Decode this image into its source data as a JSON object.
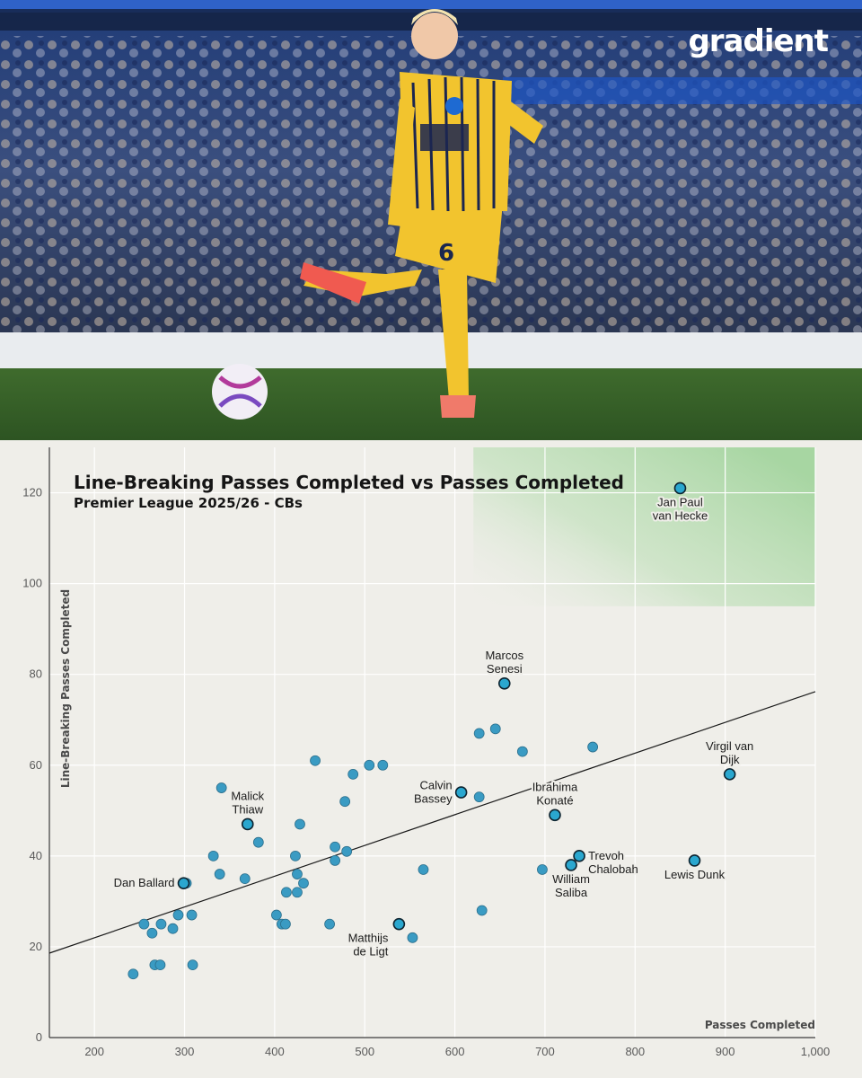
{
  "brand": {
    "logo_text": "gradient"
  },
  "colors": {
    "panel_bg": "#efeee9",
    "point_fill": "#3a9bc3",
    "point_stroke": "#2c6f8c",
    "highlight_point_fill": "#2aa7cf",
    "highlight_point_stroke": "#0e2430",
    "trend_line": "#1a1a1a",
    "grid": "#ffffff",
    "highlight_zone": "#9fd39a",
    "kit_yellow": "#f2c42e",
    "kit_navy": "#1b2650"
  },
  "photo": {
    "description_icon": "football-player-photo",
    "shirt_number": "6",
    "sponsor": "AMERICAN EXPRESS"
  },
  "chart_data": {
    "type": "scatter",
    "title": "Line-Breaking Passes Completed vs Passes Completed",
    "subtitle": "Premier League 2025/26 - CBs",
    "xlabel": "Passes Completed",
    "ylabel": "Line-Breaking Passes Completed",
    "xlim": [
      150,
      1000
    ],
    "ylim": [
      0,
      130
    ],
    "x_ticks": [
      200,
      300,
      400,
      500,
      600,
      700,
      800,
      900,
      1000
    ],
    "x_tick_labels": [
      "200",
      "300",
      "400",
      "500",
      "600",
      "700",
      "800",
      "900",
      "1,000"
    ],
    "y_ticks": [
      0,
      20,
      40,
      60,
      80,
      100,
      120
    ],
    "grid": true,
    "highlight_region": {
      "x": [
        780,
        1000
      ],
      "y": [
        95,
        130
      ]
    },
    "trend_line": {
      "x": [
        150,
        1000
      ],
      "y": [
        18.6,
        76.2
      ]
    },
    "points": [
      {
        "x": 850,
        "y": 121,
        "label": [
          "Jan Paul",
          "van Hecke"
        ],
        "label_pos": "below",
        "highlight": true
      },
      {
        "x": 655,
        "y": 78,
        "label": [
          "Marcos",
          "Senesi"
        ],
        "label_pos": "above",
        "highlight": true
      },
      {
        "x": 905,
        "y": 58,
        "label": [
          "Virgil van",
          "Dijk"
        ],
        "label_pos": "above",
        "highlight": true
      },
      {
        "x": 607,
        "y": 54,
        "label": [
          "Calvin",
          "Bassey"
        ],
        "label_pos": "left",
        "highlight": true
      },
      {
        "x": 711,
        "y": 49,
        "label": [
          "Ibrahima",
          "Konaté"
        ],
        "label_pos": "above",
        "highlight": true
      },
      {
        "x": 370,
        "y": 47,
        "label": [
          "Malick",
          "Thiaw"
        ],
        "label_pos": "above",
        "highlight": true
      },
      {
        "x": 866,
        "y": 39,
        "label": [
          "Lewis Dunk"
        ],
        "label_pos": "below",
        "highlight": true
      },
      {
        "x": 738,
        "y": 40,
        "label": [
          "Trevoh",
          "Chalobah"
        ],
        "label_pos": "right",
        "highlight": true
      },
      {
        "x": 729,
        "y": 38,
        "label": [
          "William",
          "Saliba"
        ],
        "label_pos": "below",
        "highlight": true
      },
      {
        "x": 299,
        "y": 34,
        "label": [
          "Dan Ballard"
        ],
        "label_pos": "left",
        "highlight": true
      },
      {
        "x": 538,
        "y": 25,
        "label": [
          "Matthijs",
          "de Ligt"
        ],
        "label_pos": "below-left",
        "highlight": true
      },
      {
        "x": 645,
        "y": 68
      },
      {
        "x": 627,
        "y": 67
      },
      {
        "x": 675,
        "y": 63
      },
      {
        "x": 753,
        "y": 64
      },
      {
        "x": 445,
        "y": 61
      },
      {
        "x": 505,
        "y": 60
      },
      {
        "x": 520,
        "y": 60
      },
      {
        "x": 487,
        "y": 58
      },
      {
        "x": 627,
        "y": 53
      },
      {
        "x": 478,
        "y": 52
      },
      {
        "x": 341,
        "y": 55
      },
      {
        "x": 428,
        "y": 47
      },
      {
        "x": 382,
        "y": 43
      },
      {
        "x": 467,
        "y": 42
      },
      {
        "x": 480,
        "y": 41
      },
      {
        "x": 332,
        "y": 40
      },
      {
        "x": 423,
        "y": 40
      },
      {
        "x": 467,
        "y": 39
      },
      {
        "x": 565,
        "y": 37
      },
      {
        "x": 697,
        "y": 37
      },
      {
        "x": 339,
        "y": 36
      },
      {
        "x": 425,
        "y": 36
      },
      {
        "x": 367,
        "y": 35
      },
      {
        "x": 432,
        "y": 34
      },
      {
        "x": 302,
        "y": 34
      },
      {
        "x": 413,
        "y": 32
      },
      {
        "x": 425,
        "y": 32
      },
      {
        "x": 630,
        "y": 28
      },
      {
        "x": 402,
        "y": 27
      },
      {
        "x": 293,
        "y": 27
      },
      {
        "x": 308,
        "y": 27
      },
      {
        "x": 408,
        "y": 25
      },
      {
        "x": 412,
        "y": 25
      },
      {
        "x": 461,
        "y": 25
      },
      {
        "x": 255,
        "y": 25
      },
      {
        "x": 274,
        "y": 25
      },
      {
        "x": 287,
        "y": 24
      },
      {
        "x": 264,
        "y": 23
      },
      {
        "x": 553,
        "y": 22
      },
      {
        "x": 267,
        "y": 16
      },
      {
        "x": 273,
        "y": 16
      },
      {
        "x": 309,
        "y": 16
      },
      {
        "x": 243,
        "y": 14
      }
    ]
  }
}
